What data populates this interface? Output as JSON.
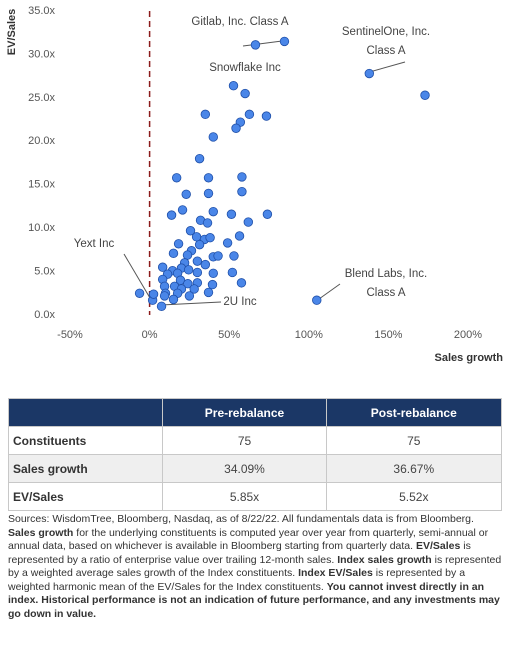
{
  "chart_data": {
    "type": "scatter",
    "y_label": "EV/Sales",
    "x_label": "Sales growth",
    "color": "#4a86e8",
    "xlim": [
      -50,
      200
    ],
    "xticks": [
      {
        "value": -50,
        "label": "-50%"
      },
      {
        "value": 0,
        "label": "0%"
      },
      {
        "value": 50,
        "label": "50%"
      },
      {
        "value": 100,
        "label": "100%"
      },
      {
        "value": 150,
        "label": "150%"
      },
      {
        "value": 200,
        "label": "200%"
      }
    ],
    "ylim": [
      0,
      35
    ],
    "yticks": [
      {
        "value": 0,
        "label": "0.0x"
      },
      {
        "value": 5,
        "label": "5.0x"
      },
      {
        "value": 10,
        "label": "10.0x"
      },
      {
        "value": 15,
        "label": "15.0x"
      },
      {
        "value": 20,
        "label": "20.0x"
      },
      {
        "value": 25,
        "label": "25.0x"
      },
      {
        "value": 30,
        "label": "30.0x"
      },
      {
        "value": 35,
        "label": "35.0x"
      }
    ],
    "x": [
      84.7,
      66.5,
      138,
      173,
      52.7,
      60,
      35,
      62.7,
      73.4,
      57,
      54.3,
      40,
      31.4,
      17,
      37,
      58,
      23,
      37,
      58,
      20.7,
      13.8,
      40,
      51.4,
      74,
      32,
      36.4,
      62,
      25.7,
      29.5,
      34.5,
      38,
      18.2,
      31.4,
      56.5,
      49,
      26.3,
      15,
      23.8,
      40,
      43,
      53,
      30,
      22,
      35,
      8.2,
      20,
      24.5,
      14.4,
      30,
      40,
      52,
      11.3,
      17.6,
      8.2,
      19.4,
      30,
      24,
      39.5,
      57.7,
      9.4,
      15.7,
      20,
      28,
      -6.3,
      10,
      17.6,
      25,
      37,
      1.9,
      15,
      2.5,
      105,
      7.5,
      9.4
    ],
    "values": [
      31.5,
      31.1,
      27.8,
      25.3,
      26.4,
      25.5,
      23.1,
      23.1,
      22.9,
      22.2,
      21.5,
      20.5,
      18,
      15.8,
      15.8,
      15.9,
      13.9,
      14,
      14.2,
      12.1,
      11.5,
      11.9,
      11.6,
      11.6,
      10.9,
      10.6,
      10.7,
      9.7,
      9.0,
      8.7,
      8.9,
      8.2,
      8.1,
      9.1,
      8.3,
      7.4,
      7.1,
      6.9,
      6.7,
      6.8,
      6.8,
      6.2,
      6.0,
      5.8,
      5.5,
      5.4,
      5.2,
      5.1,
      4.9,
      4.8,
      4.9,
      4.7,
      4.8,
      4.1,
      4.0,
      3.7,
      3.6,
      3.5,
      3.7,
      3.3,
      3.3,
      3.0,
      3.0,
      2.5,
      2.5,
      2.5,
      2.2,
      2.6,
      1.7,
      1.8,
      2.4,
      1.7,
      1.0,
      2.2
    ],
    "annotations": [
      {
        "lines": [
          "Gitlab, Inc. Class A"
        ]
      },
      {
        "lines": [
          "SentinelOne, Inc.",
          "Class A"
        ]
      },
      {
        "lines": [
          "Snowflake Inc"
        ]
      },
      {
        "lines": [
          "Yext Inc"
        ]
      },
      {
        "lines": [
          "2U Inc"
        ]
      },
      {
        "lines": [
          "Blend Labs, Inc.",
          "Class A"
        ]
      }
    ]
  },
  "table": {
    "header": [
      "Pre-rebalance",
      "Post-rebalance"
    ],
    "rows": [
      [
        "Constituents",
        "75",
        "75"
      ],
      [
        "Sales growth",
        "34.09%",
        "36.67%"
      ],
      [
        "EV/Sales",
        "5.85x",
        "5.52x"
      ]
    ]
  },
  "footnote": [
    {
      "text": "Sources: WisdomTree, Bloomberg, Nasdaq, as of 8/22/22. All fundamentals data is from Bloomberg. ",
      "bold": false
    },
    {
      "text": "Sales growth",
      "bold": true
    },
    {
      "text": " for the underlying constituents is computed year over year from quarterly, semi-annual or annual data, based on whichever is available in Bloomberg starting from quarterly data. ",
      "bold": false
    },
    {
      "text": "EV/Sales",
      "bold": true
    },
    {
      "text": " is represented by a ratio of enterprise value over trailing 12-month sales. ",
      "bold": false
    },
    {
      "text": "Index sales growth",
      "bold": true
    },
    {
      "text": " is represented by a weighted average sales growth of the Index constituents. ",
      "bold": false
    },
    {
      "text": "Index EV/Sales",
      "bold": true
    },
    {
      "text": " is represented by a weighted harmonic mean of the EV/Sales for the Index constituents. ",
      "bold": false
    },
    {
      "text": "You cannot invest directly in an index. Historical performance is not an indication of future performance, and any investments may go down in value.",
      "bold": true
    }
  ]
}
